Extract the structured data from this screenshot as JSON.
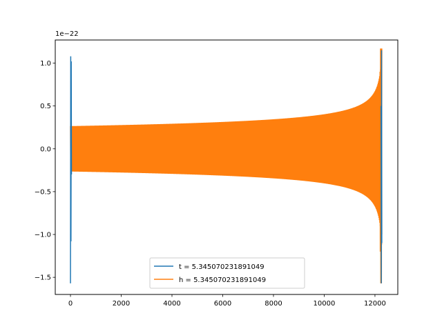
{
  "chart_data": {
    "type": "line",
    "title": "",
    "xlabel": "",
    "ylabel": "",
    "y_offset_text": "1e−22",
    "xlim": [
      -600,
      12900
    ],
    "ylim": [
      -1.7,
      1.27
    ],
    "x_ticks": [
      0,
      2000,
      4000,
      6000,
      8000,
      10000,
      12000
    ],
    "x_tick_labels": [
      "0",
      "2000",
      "4000",
      "6000",
      "8000",
      "10000",
      "12000"
    ],
    "y_ticks": [
      1.0,
      0.5,
      0.0,
      -0.5,
      -1.0,
      -1.5
    ],
    "y_tick_labels": [
      "1.0",
      "0.5",
      "0.0",
      "−0.5",
      "−1.0",
      "−1.5"
    ],
    "grid": false,
    "legend_position": "lower-center",
    "series": [
      {
        "name": "t = 5.345070231891049",
        "color": "#1f77b4",
        "description_points": [
          {
            "x": 0,
            "y": -1.57
          },
          {
            "x": 10,
            "y": 1.08
          },
          {
            "x": 20,
            "y": -1.08
          },
          {
            "x": 30,
            "y": 1.02
          },
          {
            "x": 40,
            "y": -0.3
          },
          {
            "x": 12240,
            "y": 0.5
          },
          {
            "x": 12250,
            "y": -1.57
          },
          {
            "x": 12260,
            "y": 1.15
          },
          {
            "x": 12270,
            "y": -1.1
          }
        ]
      },
      {
        "name": "h = 5.345070231891049",
        "color": "#ff7f0e",
        "envelope": {
          "x_start": 0,
          "x_end": 12270,
          "upper_start": 0.265,
          "lower_start": -0.265,
          "chirp_peak": 1.17,
          "chirp_trough": -1.57
        }
      }
    ]
  }
}
